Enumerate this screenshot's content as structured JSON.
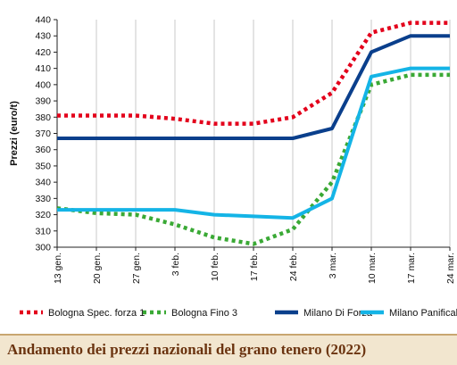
{
  "chart_data": {
    "type": "line",
    "title": "Andamento dei prezzi nazionali del grano tenero (2022)",
    "ylabel": "Prezzi (euro/t)",
    "xlabel": "",
    "categories": [
      "13 gen.",
      "20 gen.",
      "27 gen.",
      "3 feb.",
      "10 feb.",
      "17 feb.",
      "24 feb.",
      "3 mar.",
      "10 mar.",
      "17 mar.",
      "24 mar."
    ],
    "ylim": [
      300,
      440
    ],
    "yticks": [
      300,
      310,
      320,
      330,
      340,
      350,
      360,
      370,
      380,
      390,
      400,
      410,
      420,
      430,
      440
    ],
    "grid": "vertical",
    "legend_position": "bottom",
    "series": [
      {
        "name": "Bologna Spec. forza 1",
        "color": "#e3001b",
        "style": "dotted",
        "values": [
          381,
          381,
          381,
          379,
          376,
          376,
          380,
          395,
          432,
          438,
          438
        ]
      },
      {
        "name": "Bologna Fino 3",
        "color": "#3aa935",
        "style": "dotted",
        "values": [
          324,
          321,
          320,
          314,
          306,
          302,
          311,
          340,
          400,
          406,
          406
        ]
      },
      {
        "name": "Milano Di Forza",
        "color": "#0a3f8c",
        "style": "solid",
        "values": [
          367,
          367,
          367,
          367,
          367,
          367,
          367,
          373,
          420,
          430,
          430
        ]
      },
      {
        "name": "Milano Panificabile",
        "color": "#14b4e6",
        "style": "solid",
        "values": [
          323,
          323,
          323,
          323,
          320,
          319,
          318,
          330,
          405,
          410,
          410
        ]
      }
    ]
  }
}
